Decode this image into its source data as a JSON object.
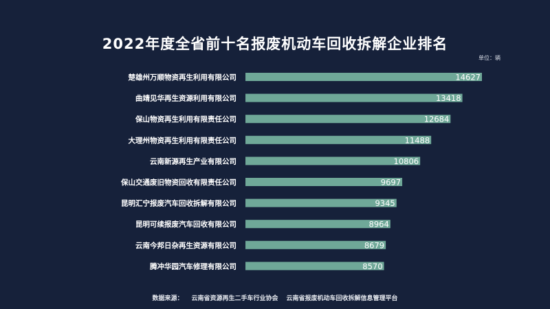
{
  "chart_data": {
    "type": "bar",
    "orientation": "horizontal",
    "title": "2022年度全省前十名报废机动车回收拆解企业排名",
    "unit_label": "单位：辆",
    "categories": [
      "楚雄州万顺物资再生利用有限公司",
      "曲靖见华再生资源利用有限公司",
      "保山物资再生利用有限责任公司",
      "大理州物资再生利用有限责任公司",
      "云南新源再生产业有限公司",
      "保山交通废旧物资回收有限责任公司",
      "昆明汇宁报废汽车回收拆解有限公司",
      "昆明可续报废汽车回收有限公司",
      "云南今邦日杂再生资源有限公司",
      "腾冲华园汽车修理有限公司"
    ],
    "values": [
      14627,
      13418,
      12684,
      11488,
      10806,
      9697,
      9345,
      8964,
      8679,
      8570
    ],
    "xlim": [
      0,
      14627
    ],
    "bar_color": "#6fa898",
    "grid": false,
    "legend": "none"
  },
  "footer": {
    "source_label": "数据来源：",
    "sources": [
      "云南省资源再生二手车行业协会",
      "云南省报废机动车回收拆解信息管理平台"
    ]
  }
}
